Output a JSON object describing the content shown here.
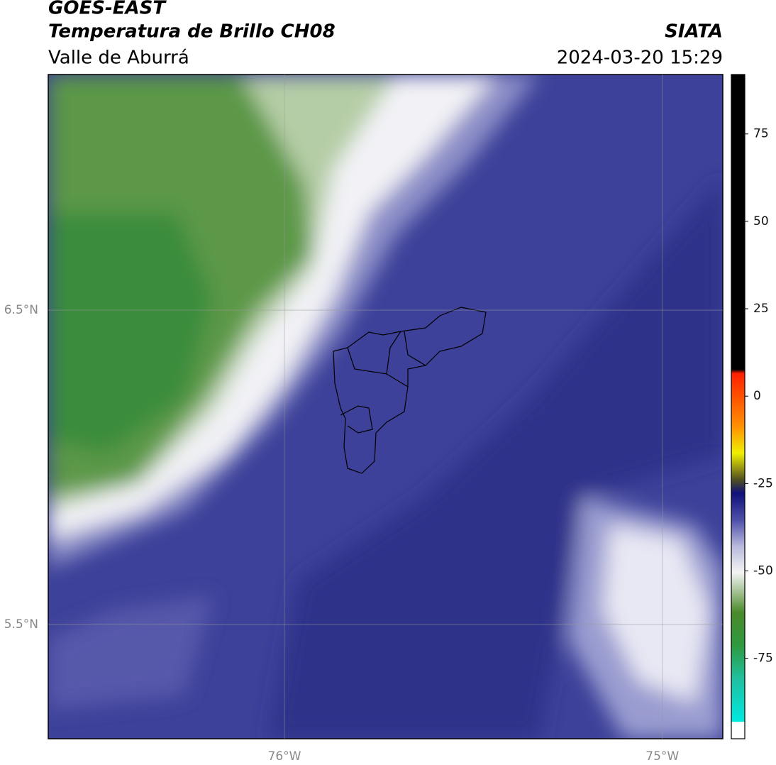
{
  "header": {
    "title": "GOES-EAST",
    "subtitle": "Temperatura de Brillo CH08",
    "region": "Valle de Aburrá",
    "source": "SIATA",
    "datetime": "2024-03-20 15:29"
  },
  "map": {
    "xlim": [
      -76.625,
      -74.84
    ],
    "ylim": [
      5.136,
      7.25
    ],
    "xticks": [
      {
        "value": -76,
        "label": "76°W"
      },
      {
        "value": -75,
        "label": "75°W"
      }
    ],
    "yticks": [
      {
        "value": 6.5,
        "label": "6.5°N"
      },
      {
        "value": 5.5,
        "label": "5.5°N"
      }
    ]
  },
  "colorbar": {
    "lim": [
      -98,
      92
    ],
    "ticks": [
      75,
      50,
      25,
      0,
      -25,
      -50,
      -75
    ]
  }
}
